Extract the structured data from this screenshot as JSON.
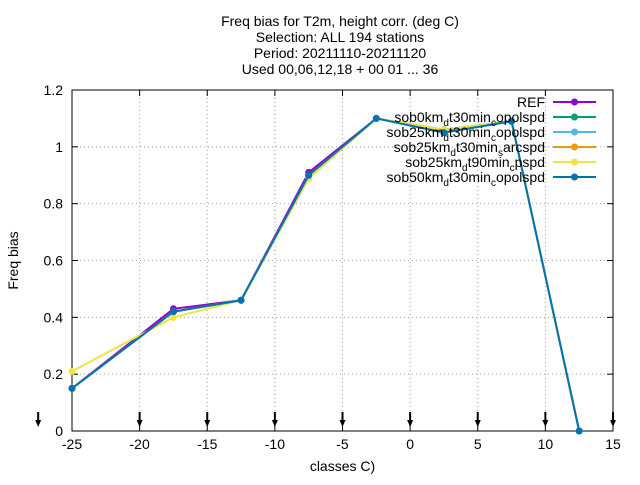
{
  "chart_data": {
    "type": "line",
    "title_lines": [
      "Freq bias  for T2m, height corr. (deg C)",
      "Selection: ALL    194 stations",
      "Period: 20211110-20211120",
      "Used 00,06,12,18 + 00 01 ... 36"
    ],
    "xlabel": "classes C)",
    "ylabel": "Freq bias",
    "xlim": [
      -25,
      15
    ],
    "ylim": [
      0,
      1.2
    ],
    "xticks": [
      -25,
      -20,
      -15,
      -10,
      -5,
      0,
      5,
      10,
      15
    ],
    "yticks": [
      0,
      0.2,
      0.4,
      0.6,
      0.8,
      1,
      1.2
    ],
    "xtick_labels": [
      "-25",
      "-20",
      "-15",
      "-10",
      "-5",
      "0",
      "5",
      "10",
      "15"
    ],
    "ytick_labels": [
      "0",
      "0.2",
      "0.4",
      "0.6",
      "0.8",
      "1",
      "1.2"
    ],
    "grid": true,
    "legend_position": "top-right",
    "x": [
      -25,
      -17.5,
      -12.5,
      -7.5,
      -2.5,
      2.5,
      7.5,
      12.5
    ],
    "series": [
      {
        "name": "REF",
        "color": "#9400d3",
        "values": [
          0.15,
          0.43,
          0.46,
          0.91,
          1.1,
          1.06,
          1.09,
          0.0
        ]
      },
      {
        "name": "sob0km_d t30min_c opolspd",
        "name_parts": [
          [
            "sob0km",
            ""
          ],
          [
            "d",
            "sub"
          ],
          [
            "t30min",
            ""
          ],
          [
            "c",
            "sub"
          ],
          [
            "opolspd",
            ""
          ]
        ],
        "color": "#009e73",
        "values": [
          0.15,
          0.42,
          0.46,
          0.89,
          1.1,
          1.06,
          1.09,
          0.0
        ]
      },
      {
        "name": "sob25km_d t30min_c opolspd",
        "name_parts": [
          [
            "sob25km",
            ""
          ],
          [
            "d",
            "sub"
          ],
          [
            "t30min",
            ""
          ],
          [
            "c",
            "sub"
          ],
          [
            "opolspd",
            ""
          ]
        ],
        "color": "#56b4e9",
        "values": [
          0.15,
          0.42,
          0.46,
          0.9,
          1.1,
          1.05,
          1.09,
          0.0
        ]
      },
      {
        "name": "sob25km_d t30min_s arcspd",
        "name_parts": [
          [
            "sob25km",
            ""
          ],
          [
            "d",
            "sub"
          ],
          [
            "t30min",
            ""
          ],
          [
            "s",
            "sub"
          ],
          [
            "arcspd",
            ""
          ]
        ],
        "color": "#e69f00",
        "values": [
          0.15,
          0.42,
          0.46,
          0.9,
          1.1,
          1.06,
          1.09,
          0.0
        ]
      },
      {
        "name": "sob25km_d t90min_c pspd",
        "name_parts": [
          [
            "sob25km",
            ""
          ],
          [
            "d",
            "sub"
          ],
          [
            "t90min",
            ""
          ],
          [
            "c",
            "sub"
          ],
          [
            "pspd",
            ""
          ]
        ],
        "color": "#f0e442",
        "values": [
          0.21,
          0.4,
          0.46,
          0.89,
          1.1,
          1.06,
          1.09,
          0.0
        ]
      },
      {
        "name": "sob50km_d t30min_c opolspd",
        "name_parts": [
          [
            "sob50km",
            ""
          ],
          [
            "d",
            "sub"
          ],
          [
            "t30min",
            ""
          ],
          [
            "c",
            "sub"
          ],
          [
            "opolspd",
            ""
          ]
        ],
        "color": "#0072b2",
        "values": [
          0.15,
          0.42,
          0.46,
          0.9,
          1.1,
          1.05,
          1.09,
          0.0
        ]
      }
    ],
    "bottom_markers_x": [
      -27.5,
      -20,
      -15,
      -10,
      -5,
      0,
      5,
      10,
      15
    ]
  }
}
